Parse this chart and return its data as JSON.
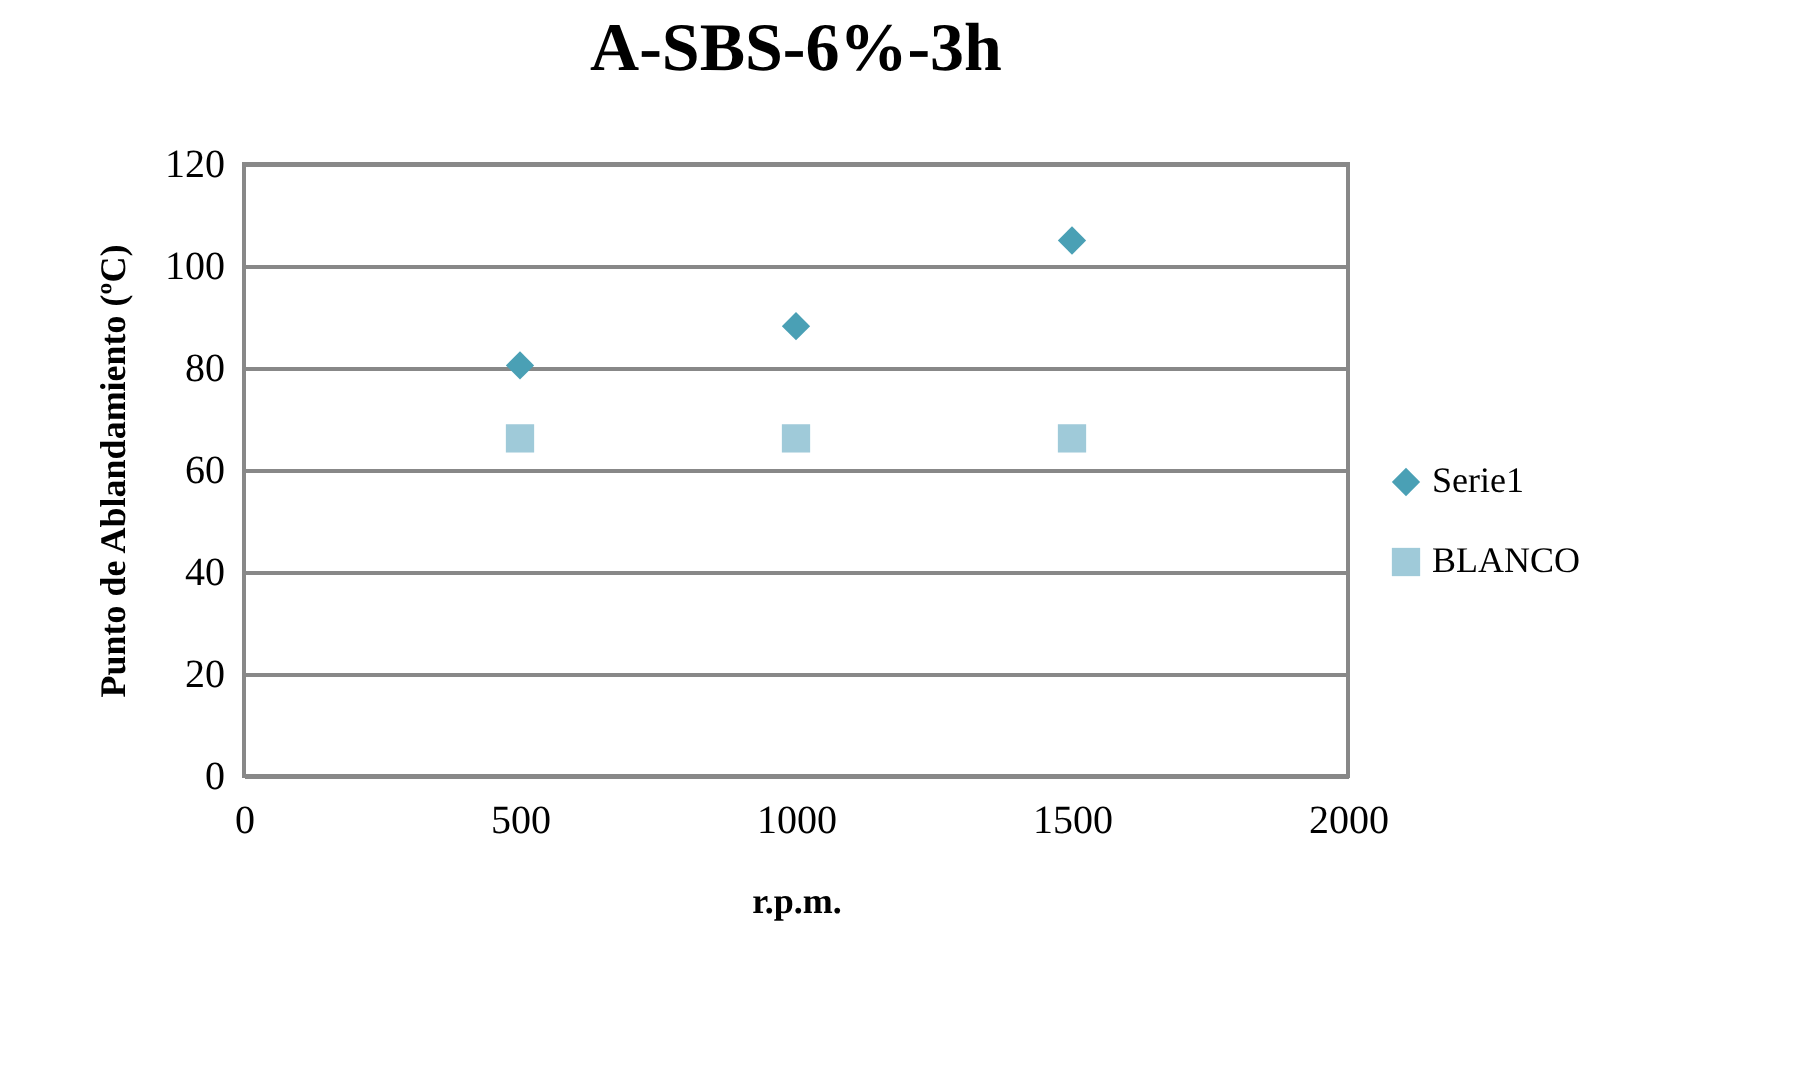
{
  "chart_data": {
    "type": "scatter",
    "title": "A-SBS-6%-3h",
    "xlabel": "r.p.m.",
    "ylabel": "Punto de Ablandamiento (ºC)",
    "x": [
      500,
      1000,
      1500
    ],
    "series": [
      {
        "name": "Serie1",
        "color": "#4aa0b5",
        "marker": "diamond",
        "values": [
          80.5,
          88.2,
          105
        ]
      },
      {
        "name": "BLANCO",
        "color": "#9fcad9",
        "marker": "square",
        "values": [
          66.2,
          66.2,
          66.2
        ]
      }
    ],
    "xlim": [
      0,
      2000
    ],
    "xticks": [
      0,
      500,
      1000,
      1500,
      2000
    ],
    "ylim": [
      0,
      120
    ],
    "yticks": [
      0,
      20,
      40,
      60,
      80,
      100,
      120
    ],
    "grid": "y",
    "legend": "right"
  }
}
